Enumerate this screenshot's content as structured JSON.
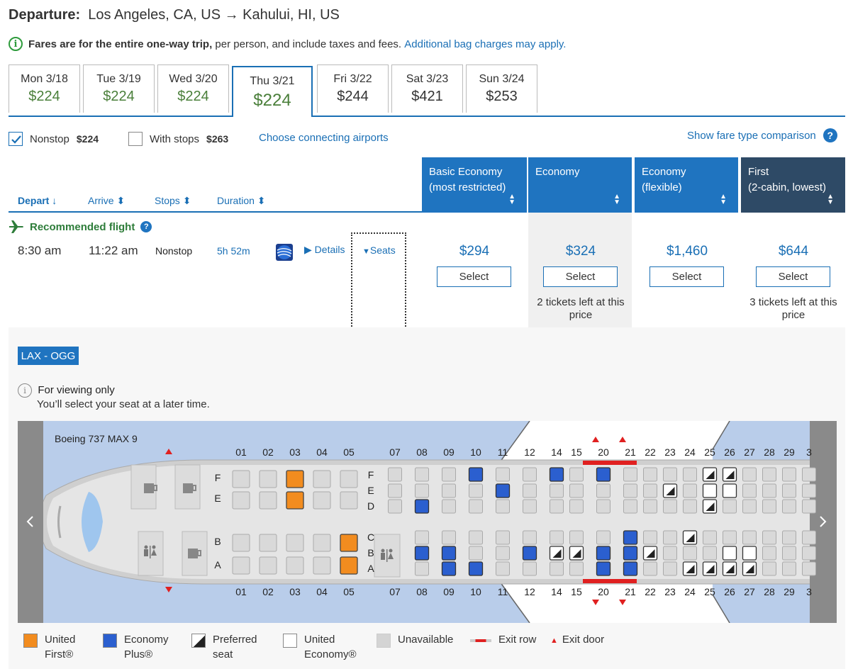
{
  "header": {
    "label": "Departure:",
    "route": "Los Angeles, CA, US → Kahului, HI, US"
  },
  "notice": {
    "bold": "Fares are for the entire one-way trip,",
    "rest": " per person, and include taxes and fees.",
    "link": "Additional bag charges may apply."
  },
  "dates": [
    {
      "day": "Mon 3/18",
      "price": "$224"
    },
    {
      "day": "Tue 3/19",
      "price": "$224"
    },
    {
      "day": "Wed 3/20",
      "price": "$224"
    },
    {
      "day": "Thu 3/21",
      "price": "$224"
    },
    {
      "day": "Fri 3/22",
      "price": "$244"
    },
    {
      "day": "Sat 3/23",
      "price": "$421"
    },
    {
      "day": "Sun 3/24",
      "price": "$253"
    }
  ],
  "filters": {
    "nonstop_label": "Nonstop",
    "nonstop_price": "$224",
    "nonstop_checked": true,
    "stops_label": "With stops",
    "stops_price": "$263",
    "connect_link": "Choose connecting airports",
    "compare_link": "Show fare type comparison"
  },
  "sort": {
    "depart": "Depart ↓",
    "arrive": "Arrive ⬍",
    "stops": "Stops ⬍",
    "duration": "Duration ⬍"
  },
  "columns": [
    {
      "line1": "Basic Economy",
      "line2": "(most restricted)"
    },
    {
      "line1": "Economy",
      "line2": ""
    },
    {
      "line1": "Economy",
      "line2": "(flexible)"
    },
    {
      "line1": "First",
      "line2": "(2-cabin, lowest)"
    }
  ],
  "flight": {
    "recommended": "Recommended flight",
    "depart": "8:30 am",
    "arrive": "11:22 am",
    "stops": "Nonstop",
    "duration": "5h 52m",
    "details": "Details",
    "seats": "Seats",
    "fares": [
      "$294",
      "$324",
      "$1,460",
      "$644"
    ],
    "select_label": "Select",
    "econ_note": "2 tickets left at this price",
    "first_note": "3 tickets left at this price"
  },
  "seatmap": {
    "route": "LAX - OGG",
    "viewing_title": "For viewing only",
    "viewing_sub": "You’ll select your seat at a later time.",
    "aircraft": "Boeing 737 MAX 9",
    "rows": [
      "01",
      "02",
      "03",
      "04",
      "05",
      "07",
      "08",
      "09",
      "10",
      "11",
      "12",
      "14",
      "15",
      "20",
      "21",
      "22",
      "23",
      "24",
      "25",
      "26",
      "27",
      "28",
      "29",
      "3"
    ],
    "letters_first": [
      "F",
      "E",
      "B",
      "A"
    ],
    "letters_econ": [
      "F",
      "E",
      "D",
      "C",
      "B",
      "A"
    ]
  },
  "legend": [
    {
      "line1": "United",
      "line2": "First®",
      "color": "#f28c1f"
    },
    {
      "line1": "Economy",
      "line2": "Plus®",
      "color": "#2b5fcf"
    },
    {
      "line1": "Preferred",
      "line2": "seat",
      "color": "pref"
    },
    {
      "line1": "United",
      "line2": "Economy®",
      "color": "#ffffff"
    },
    {
      "line1": "Unavailable",
      "line2": "",
      "color": "#d4d4d4"
    },
    {
      "line1": "Exit row",
      "line2": "",
      "color": "exit"
    },
    {
      "line1": "Exit door",
      "line2": "",
      "color": "door"
    }
  ],
  "colors": {
    "accent": "#1a6fb5",
    "column_blue": "#1f74c0",
    "first_column": "#2e4a66",
    "price_green": "#4a7f3a"
  }
}
